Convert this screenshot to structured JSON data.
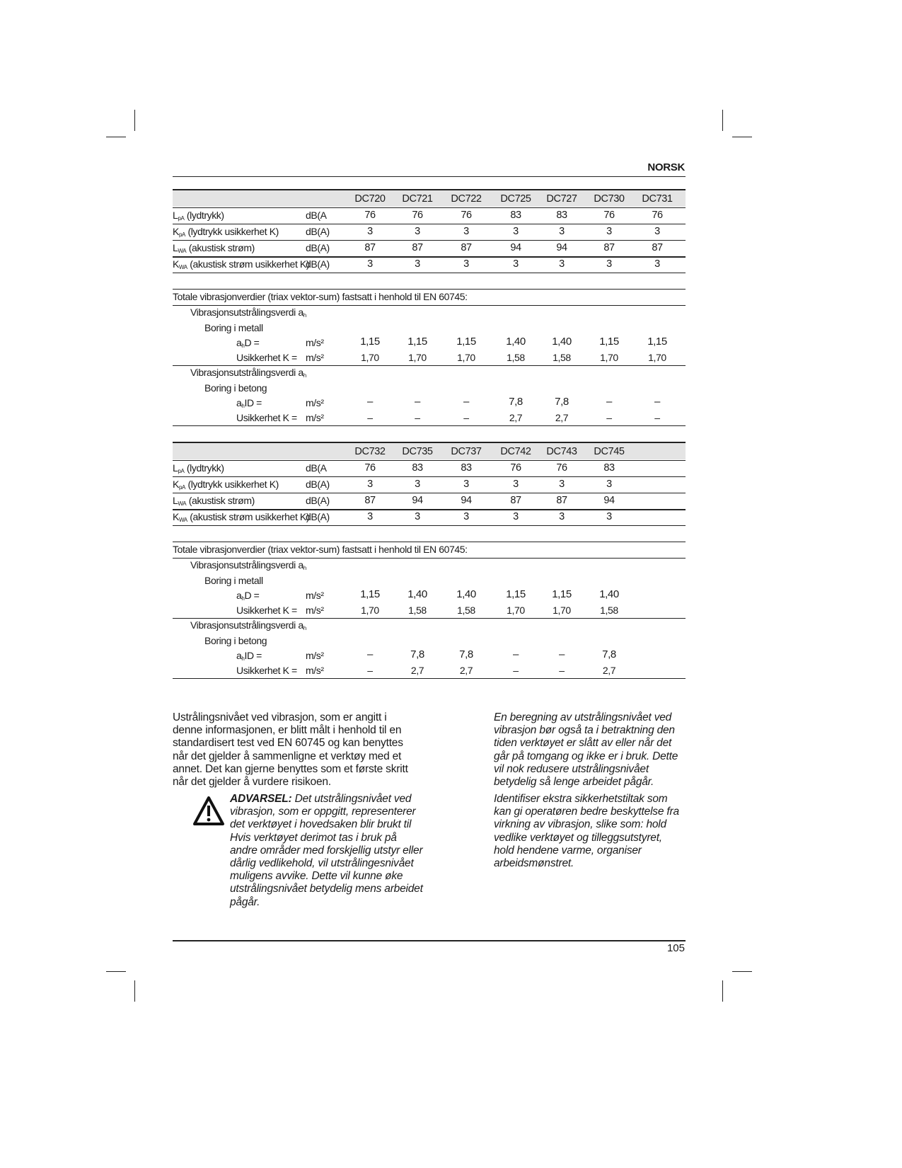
{
  "header": {
    "language": "NORSK"
  },
  "footer": {
    "page_number": "105"
  },
  "tables": [
    {
      "models": [
        "DC720",
        "DC721",
        "DC722",
        "DC725",
        "DC727",
        "DC730",
        "DC731"
      ],
      "noise_rows": [
        {
          "sym": "L",
          "sub": "pA",
          "label": "(lydtrykk)",
          "unit": "dB(A",
          "values": [
            "76",
            "76",
            "76",
            "83",
            "83",
            "76",
            "76"
          ]
        },
        {
          "sym": "K",
          "sub": "pA",
          "label": "(lydtrykk usikkerhet K)",
          "unit": "dB(A)",
          "values": [
            "3",
            "3",
            "3",
            "3",
            "3",
            "3",
            "3"
          ]
        },
        {
          "sym": "L",
          "sub": "WA",
          "label": "(akustisk strøm)",
          "unit": "dB(A)",
          "values": [
            "87",
            "87",
            "87",
            "94",
            "94",
            "87",
            "87"
          ]
        },
        {
          "sym": "K",
          "sub": "WA",
          "label": "(akustisk strøm usikkerhet K)",
          "unit": "dB(A)",
          "values": [
            "3",
            "3",
            "3",
            "3",
            "3",
            "3",
            "3"
          ]
        }
      ],
      "vibration_title": "Totale vibrasjonverdier (triax vektor-sum) fastsatt i henhold til EN 60745:",
      "vibration_groups": [
        {
          "heading": "Vibrasjonsutstrålingsverdi a",
          "heading_sub": "h",
          "mode": "Boring i metall",
          "value_label": "a",
          "value_label_sub": "h",
          "value_label_rest": "D =",
          "unit": "m/s²",
          "values": [
            "1,15",
            "1,15",
            "1,15",
            "1,40",
            "1,40",
            "1,15",
            "1,15"
          ],
          "uncert_label": "Usikkerhet K =",
          "uncert_unit": "m/s²",
          "uncert": [
            "1,70",
            "1,70",
            "1,70",
            "1,58",
            "1,58",
            "1,70",
            "1,70"
          ]
        },
        {
          "heading": "Vibrasjonsutstrålingsverdi a",
          "heading_sub": "h",
          "mode": "Boring i betong",
          "value_label": "a",
          "value_label_sub": "h",
          "value_label_rest": "ID =",
          "unit": "m/s²",
          "values": [
            "–",
            "–",
            "–",
            "7,8",
            "7,8",
            "–",
            "–"
          ],
          "uncert_label": "Usikkerhet K =",
          "uncert_unit": "m/s²",
          "uncert": [
            "–",
            "–",
            "–",
            "2,7",
            "2,7",
            "–",
            "–"
          ]
        }
      ]
    },
    {
      "models": [
        "DC732",
        "DC735",
        "DC737",
        "DC742",
        "DC743",
        "DC745"
      ],
      "noise_rows": [
        {
          "sym": "L",
          "sub": "pA",
          "label": "(lydtrykk)",
          "unit": "dB(A",
          "values": [
            "76",
            "83",
            "83",
            "76",
            "76",
            "83"
          ]
        },
        {
          "sym": "K",
          "sub": "pA",
          "label": "(lydtrykk usikkerhet K)",
          "unit": "dB(A)",
          "values": [
            "3",
            "3",
            "3",
            "3",
            "3",
            "3"
          ]
        },
        {
          "sym": "L",
          "sub": "WA",
          "label": "(akustisk strøm)",
          "unit": "dB(A)",
          "values": [
            "87",
            "94",
            "94",
            "87",
            "87",
            "94"
          ]
        },
        {
          "sym": "K",
          "sub": "WA",
          "label": "(akustisk strøm usikkerhet K)",
          "unit": "dB(A)",
          "values": [
            "3",
            "3",
            "3",
            "3",
            "3",
            "3"
          ]
        }
      ],
      "vibration_title": "Totale vibrasjonverdier (triax vektor-sum) fastsatt i henhold til EN 60745:",
      "vibration_groups": [
        {
          "heading": "Vibrasjonsutstrålingsverdi a",
          "heading_sub": "h",
          "mode": "Boring i metall",
          "value_label": "a",
          "value_label_sub": "h",
          "value_label_rest": "D =",
          "unit": "m/s²",
          "values": [
            "1,15",
            "1,40",
            "1,40",
            "1,15",
            "1,15",
            "1,40"
          ],
          "uncert_label": "Usikkerhet K =",
          "uncert_unit": "m/s²",
          "uncert": [
            "1,70",
            "1,58",
            "1,58",
            "1,70",
            "1,70",
            "1,58"
          ]
        },
        {
          "heading": "Vibrasjonsutstrålingsverdi a",
          "heading_sub": "h",
          "mode": "Boring i betong",
          "value_label": "a",
          "value_label_sub": "h",
          "value_label_rest": "ID =",
          "unit": "m/s²",
          "values": [
            "–",
            "7,8",
            "7,8",
            "–",
            "–",
            "7,8"
          ],
          "uncert_label": "Usikkerhet K =",
          "uncert_unit": "m/s²",
          "uncert": [
            "–",
            "2,7",
            "2,7",
            "–",
            "–",
            "2,7"
          ]
        }
      ]
    }
  ],
  "body": {
    "left_paragraph": "Ustrålingsnivået ved vibrasjon, som er angitt i denne informasjonen, er blitt målt i henhold til en standardisert test ved EN 60745 og kan benyttes når det gjelder å sammenligne et verktøy med et annet. Det kan gjerne benyttes som et første skritt når det gjelder å vurdere risikoen.",
    "warning_label": "ADVARSEL:",
    "warning_text": " Det utstrålingsnivået ved vibrasjon, som er oppgitt, representerer det verktøyet i hovedsaken blir brukt til Hvis verktøyet derimot tas i bruk på andre områder med forskjellig utstyr eller dårlig vedlikehold, vil utstrålingesnivået muligens avvike. Dette vil kunne øke utstrålingsnivået betydelig mens arbeidet pågår.",
    "right_paragraph_1": "En beregning av utstrålingsnivået ved vibrasjon bør også ta i betraktning den tiden verktøyet er slått av eller når det går på tomgang og ikke er i bruk. Dette vil nok redusere utstrålingsnivået betydelig så lenge arbeidet pågår.",
    "right_paragraph_2": "Identifiser ekstra sikkerhetstiltak som kan gi operatøren bedre beskyttelse fra virkning av vibrasjon, slike som: hold vedlike verktøyet og tilleggsutstyret, hold hendene varme, organiser arbeidsmønstret."
  }
}
